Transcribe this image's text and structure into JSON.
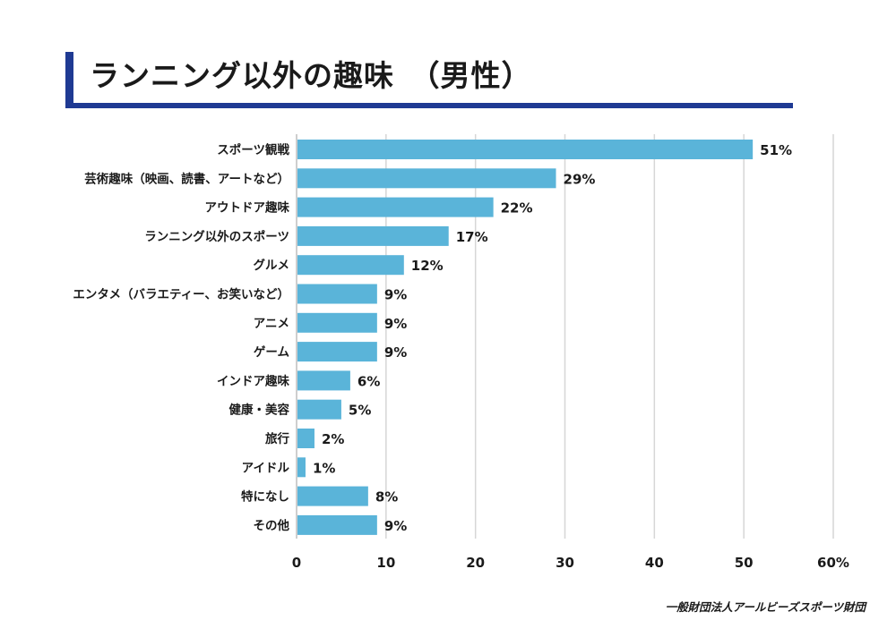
{
  "chart_data": {
    "type": "bar",
    "orientation": "horizontal",
    "title": "ランニング以外の趣味　（男性）",
    "categories": [
      "スポーツ観戦",
      "芸術趣味（映画、読書、アートなど）",
      "アウトドア趣味",
      "ランニング以外のスポーツ",
      "グルメ",
      "エンタメ（バラエティー、お笑いなど）",
      "アニメ",
      "ゲーム",
      "インドア趣味",
      "健康・美容",
      "旅行",
      "アイドル",
      "特になし",
      "その他"
    ],
    "values": [
      51,
      29,
      22,
      17,
      12,
      9,
      9,
      9,
      6,
      5,
      2,
      1,
      8,
      9
    ],
    "value_labels": [
      "51%",
      "29%",
      "22%",
      "17%",
      "12%",
      "9%",
      "9%",
      "9%",
      "6%",
      "5%",
      "2%",
      "1%",
      "8%",
      "9%"
    ],
    "x_ticks": [
      "0",
      "10",
      "20",
      "30",
      "40",
      "50",
      "60%"
    ],
    "xlim": [
      0,
      60
    ],
    "grid": true,
    "bar_color": "#5ab4d9",
    "grid_color": "#d6d6d6"
  },
  "footer": {
    "source": "一般財団法人アールビーズスポーツ財団"
  }
}
